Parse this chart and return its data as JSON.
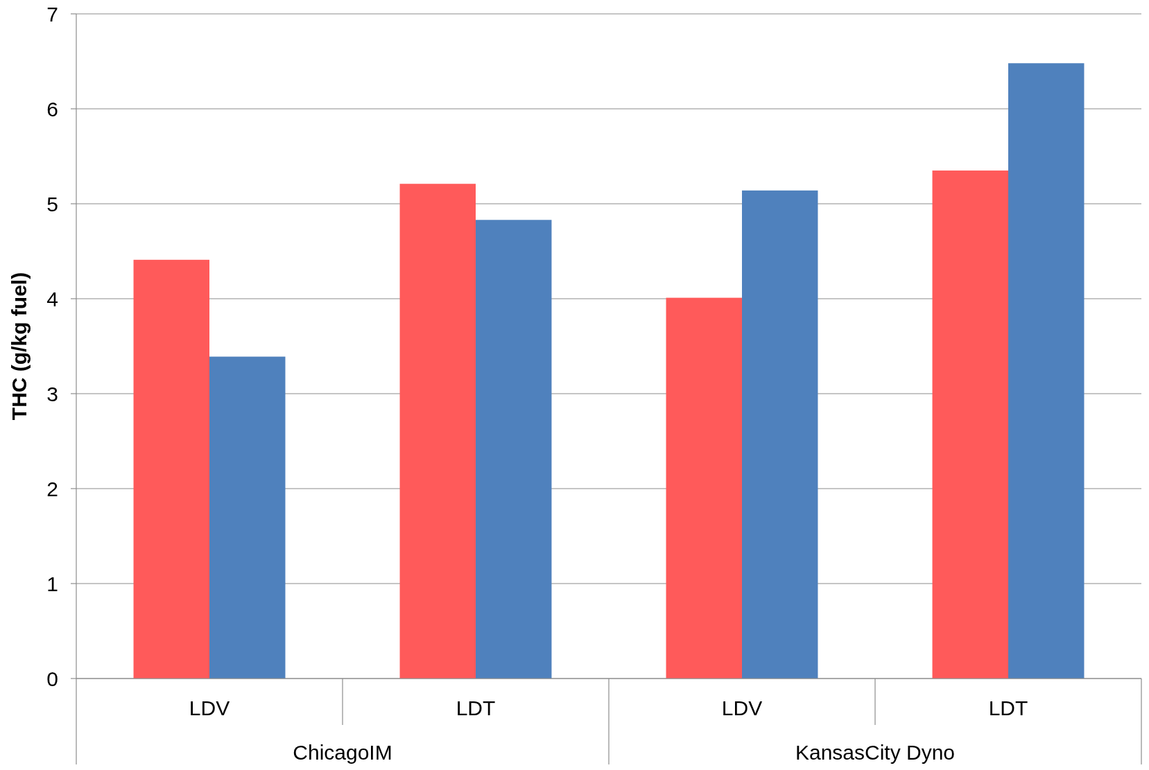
{
  "chart_data": {
    "type": "bar",
    "ylabel": "THC (g/kg fuel)",
    "categories": [
      "LDV",
      "LDT",
      "LDV",
      "LDT"
    ],
    "series": [
      {
        "color": "#ff5a5a",
        "values": [
          4.41,
          5.21,
          4.01,
          5.35
        ]
      },
      {
        "color": "#4f81bd",
        "values": [
          3.39,
          4.83,
          5.14,
          6.48
        ]
      }
    ],
    "ylim": [
      0,
      7
    ],
    "yticks": [
      0,
      1,
      2,
      3,
      4,
      5,
      6,
      7
    ],
    "grid": "y",
    "annotations": [
      "ChicagoIM",
      "KansasCity Dyno"
    ]
  }
}
